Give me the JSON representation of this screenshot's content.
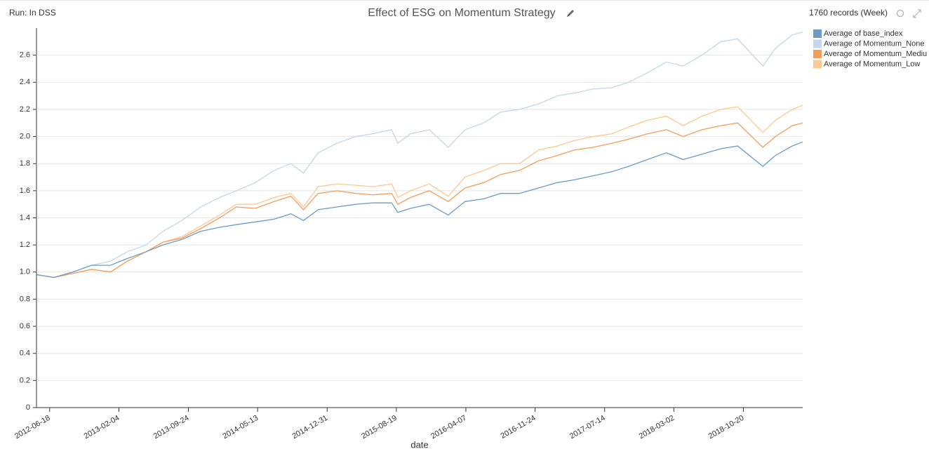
{
  "header": {
    "run": "Run: In DSS",
    "records": "1760 records (Week)"
  },
  "chart_data": {
    "type": "line",
    "title": "Effect of ESG on Momentum Strategy",
    "xlabel": "date",
    "x": [
      "2012-05-07",
      "2012-07-02",
      "2012-09-03",
      "2012-11-05",
      "2013-01-07",
      "2013-03-04",
      "2013-05-06",
      "2013-07-01",
      "2013-09-02",
      "2013-11-04",
      "2014-01-06",
      "2014-03-03",
      "2014-05-05",
      "2014-07-07",
      "2014-09-01",
      "2014-10-13",
      "2014-12-01",
      "2015-02-02",
      "2015-04-06",
      "2015-06-01",
      "2015-08-03",
      "2015-08-24",
      "2015-10-05",
      "2015-12-07",
      "2016-02-08",
      "2016-04-04",
      "2016-06-06",
      "2016-08-01",
      "2016-10-03",
      "2016-12-05",
      "2017-02-06",
      "2017-04-03",
      "2017-06-05",
      "2017-08-07",
      "2017-10-02",
      "2017-12-04",
      "2018-02-05",
      "2018-04-02",
      "2018-06-04",
      "2018-08-06",
      "2018-10-01",
      "2018-12-24",
      "2019-02-04",
      "2019-04-01",
      "2019-05-06"
    ],
    "series": [
      {
        "name": "Average of base_index",
        "color": "#6c9cc4",
        "values": [
          0.98,
          0.96,
          1.0,
          1.05,
          1.05,
          1.1,
          1.15,
          1.2,
          1.24,
          1.3,
          1.33,
          1.35,
          1.37,
          1.39,
          1.43,
          1.38,
          1.46,
          1.48,
          1.5,
          1.51,
          1.51,
          1.44,
          1.47,
          1.5,
          1.42,
          1.52,
          1.54,
          1.58,
          1.58,
          1.62,
          1.66,
          1.68,
          1.71,
          1.74,
          1.78,
          1.83,
          1.88,
          1.83,
          1.87,
          1.91,
          1.93,
          1.78,
          1.86,
          1.93,
          1.96
        ]
      },
      {
        "name": "Average of Momentum_None",
        "color": "#c5d6ea",
        "values": [
          0.98,
          0.96,
          1.0,
          1.05,
          1.08,
          1.15,
          1.2,
          1.3,
          1.38,
          1.48,
          1.55,
          1.6,
          1.66,
          1.75,
          1.8,
          1.73,
          1.88,
          1.95,
          2.0,
          2.02,
          2.05,
          1.95,
          2.02,
          2.05,
          1.92,
          2.05,
          2.1,
          2.18,
          2.2,
          2.24,
          2.3,
          2.32,
          2.35,
          2.36,
          2.4,
          2.47,
          2.55,
          2.52,
          2.6,
          2.7,
          2.72,
          2.52,
          2.65,
          2.75,
          2.77
        ]
      },
      {
        "name": "Average of Momentum_Mediu",
        "color": "#f29d5a",
        "values": [
          0.98,
          0.96,
          0.99,
          1.02,
          1.0,
          1.08,
          1.15,
          1.22,
          1.25,
          1.32,
          1.4,
          1.48,
          1.47,
          1.52,
          1.56,
          1.46,
          1.58,
          1.6,
          1.58,
          1.57,
          1.58,
          1.5,
          1.55,
          1.6,
          1.52,
          1.62,
          1.66,
          1.72,
          1.75,
          1.82,
          1.86,
          1.9,
          1.92,
          1.95,
          1.98,
          2.02,
          2.05,
          2.0,
          2.05,
          2.08,
          2.1,
          1.92,
          2.0,
          2.08,
          2.1
        ]
      },
      {
        "name": "Average of Momentum_Low",
        "color": "#fbc992",
        "values": [
          0.98,
          0.96,
          0.99,
          1.02,
          1.0,
          1.08,
          1.15,
          1.22,
          1.26,
          1.34,
          1.42,
          1.5,
          1.5,
          1.55,
          1.58,
          1.48,
          1.63,
          1.65,
          1.64,
          1.63,
          1.65,
          1.55,
          1.6,
          1.65,
          1.56,
          1.7,
          1.75,
          1.8,
          1.8,
          1.9,
          1.93,
          1.97,
          2.0,
          2.02,
          2.07,
          2.12,
          2.15,
          2.08,
          2.15,
          2.2,
          2.22,
          2.03,
          2.12,
          2.2,
          2.23
        ]
      }
    ],
    "xlim": [
      "2012-05-05",
      "2019-05-06"
    ],
    "xticks": [
      "2012-06-18",
      "2013-02-04",
      "2013-09-24",
      "2014-05-13",
      "2014-12-31",
      "2015-08-19",
      "2016-04-07",
      "2016-11-24",
      "2017-07-14",
      "2018-03-02",
      "2018-10-20"
    ],
    "ylim": [
      0,
      2.8
    ],
    "yticks": [
      0,
      0.2,
      0.4,
      0.6,
      0.8,
      {
        "value": 1,
        "label": "1.0"
      },
      1.2,
      1.4,
      1.6,
      1.8,
      {
        "value": 2,
        "label": "2.0"
      },
      2.2,
      2.4,
      2.6
    ],
    "grid": true
  }
}
